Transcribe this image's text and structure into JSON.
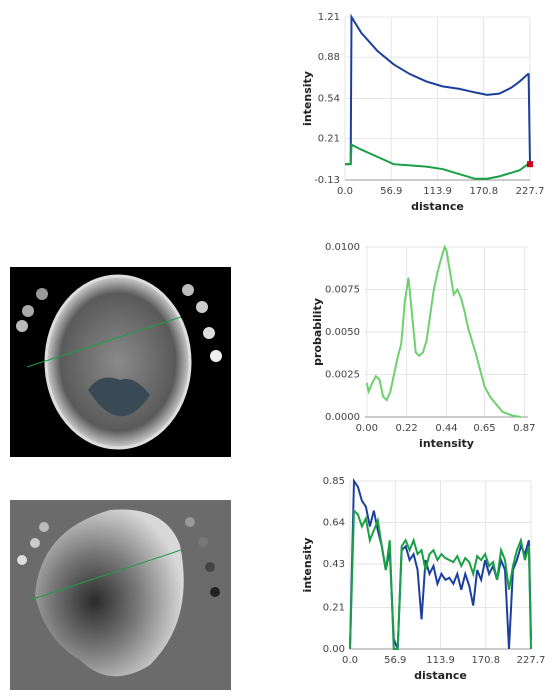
{
  "chart_data": [
    {
      "type": "line",
      "xlabel": "distance",
      "ylabel": "intensity",
      "xlim": [
        0,
        227.7
      ],
      "ylim": [
        -0.13,
        1.21
      ],
      "xticks": [
        {
          "value": 0,
          "label": "0.0"
        },
        56.9,
        113.9,
        170.8,
        227.7
      ],
      "yticks": [
        -0.13,
        0.21,
        0.54,
        0.88,
        1.21
      ],
      "grid": true,
      "x": [
        0,
        7,
        8,
        20,
        40,
        60,
        80,
        100,
        120,
        140,
        160,
        175,
        190,
        205,
        215,
        225,
        226,
        227.7
      ],
      "series": [
        {
          "color": "#1c3f9e",
          "values": [
            0,
            0,
            1.21,
            1.08,
            0.93,
            0.82,
            0.74,
            0.68,
            0.64,
            0.62,
            0.59,
            0.57,
            0.58,
            0.63,
            0.68,
            0.74,
            0.74,
            0
          ]
        },
        {
          "color": "#1a9f45",
          "values": [
            0,
            0,
            0.16,
            0.12,
            0.06,
            0,
            -0.01,
            -0.02,
            -0.04,
            -0.08,
            -0.12,
            -0.12,
            -0.1,
            -0.07,
            -0.05,
            0,
            0,
            0
          ]
        }
      ],
      "marker": {
        "x": 227.7,
        "y": 0,
        "color": "#d0021b"
      }
    },
    {
      "type": "line",
      "xlabel": "intensity",
      "ylabel": "probability",
      "xlim": [
        -0.01,
        0.89
      ],
      "ylim": [
        0,
        0.01
      ],
      "xticks": [
        {
          "value": 0,
          "label": "0.00"
        },
        0.22,
        0.44,
        0.65,
        0.87
      ],
      "yticks": [
        {
          "value": 0,
          "label": "0.0000"
        },
        0.0025,
        {
          "value": 0.005,
          "label": "0.0050"
        },
        0.0075,
        {
          "value": 0.01,
          "label": "0.0100"
        }
      ],
      "grid": true,
      "x": [
        0,
        0.01,
        0.03,
        0.05,
        0.07,
        0.09,
        0.11,
        0.13,
        0.15,
        0.17,
        0.19,
        0.21,
        0.23,
        0.25,
        0.27,
        0.29,
        0.31,
        0.33,
        0.35,
        0.37,
        0.39,
        0.41,
        0.43,
        0.44,
        0.46,
        0.48,
        0.5,
        0.52,
        0.54,
        0.56,
        0.58,
        0.6,
        0.62,
        0.65,
        0.68,
        0.71,
        0.75,
        0.8,
        0.85
      ],
      "series": [
        {
          "color": "#6fd06f",
          "values": [
            0.002,
            0.0015,
            0.002,
            0.0024,
            0.0022,
            0.0012,
            0.001,
            0.0015,
            0.0025,
            0.0035,
            0.0043,
            0.0068,
            0.0082,
            0.006,
            0.0038,
            0.0036,
            0.0038,
            0.0045,
            0.006,
            0.0075,
            0.0085,
            0.0093,
            0.01,
            0.0098,
            0.0085,
            0.0072,
            0.0075,
            0.007,
            0.0062,
            0.0052,
            0.0045,
            0.0038,
            0.003,
            0.0018,
            0.0012,
            0.0008,
            0.0003,
            0.0001,
            0
          ]
        }
      ]
    },
    {
      "type": "line",
      "xlabel": "distance",
      "ylabel": "intensity",
      "xlim": [
        0,
        227.7
      ],
      "ylim": [
        0,
        0.85
      ],
      "xticks": [
        {
          "value": 0,
          "label": "0.0"
        },
        56.9,
        113.9,
        170.8,
        227.7
      ],
      "yticks": [
        {
          "value": 0,
          "label": "0.00"
        },
        0.21,
        0.43,
        0.64,
        0.85
      ],
      "grid": true,
      "x": [
        0,
        5,
        10,
        15,
        20,
        25,
        30,
        35,
        40,
        45,
        50,
        55,
        60,
        65,
        70,
        75,
        80,
        85,
        90,
        95,
        100,
        105,
        110,
        115,
        120,
        125,
        130,
        135,
        140,
        145,
        150,
        155,
        160,
        165,
        170,
        175,
        180,
        185,
        190,
        195,
        200,
        205,
        210,
        215,
        220,
        225,
        227.7
      ],
      "series": [
        {
          "color": "#1c3f9e",
          "values": [
            0,
            0.85,
            0.82,
            0.75,
            0.72,
            0.62,
            0.7,
            0.6,
            0.52,
            0.4,
            0.5,
            0.05,
            0,
            0.5,
            0.52,
            0.45,
            0.48,
            0.4,
            0.15,
            0.45,
            0.38,
            0.42,
            0.33,
            0.38,
            0.35,
            0.36,
            0.33,
            0.38,
            0.3,
            0.38,
            0.32,
            0.22,
            0.4,
            0.35,
            0.45,
            0.38,
            0.42,
            0.35,
            0.45,
            0.4,
            0,
            0.4,
            0.45,
            0.52,
            0.48,
            0.55,
            0.05
          ]
        },
        {
          "color": "#1a9f45",
          "values": [
            0,
            0.7,
            0.68,
            0.62,
            0.66,
            0.55,
            0.6,
            0.65,
            0.52,
            0.4,
            0.55,
            0,
            0,
            0.52,
            0.55,
            0.5,
            0.55,
            0.48,
            0.5,
            0.4,
            0.48,
            0.5,
            0.45,
            0.48,
            0.46,
            0.45,
            0.44,
            0.47,
            0.42,
            0.46,
            0.44,
            0.38,
            0.47,
            0.45,
            0.48,
            0.42,
            0.44,
            0.35,
            0.5,
            0.45,
            0.3,
            0.42,
            0.5,
            0.55,
            0.45,
            0.52,
            0
          ]
        }
      ]
    }
  ]
}
